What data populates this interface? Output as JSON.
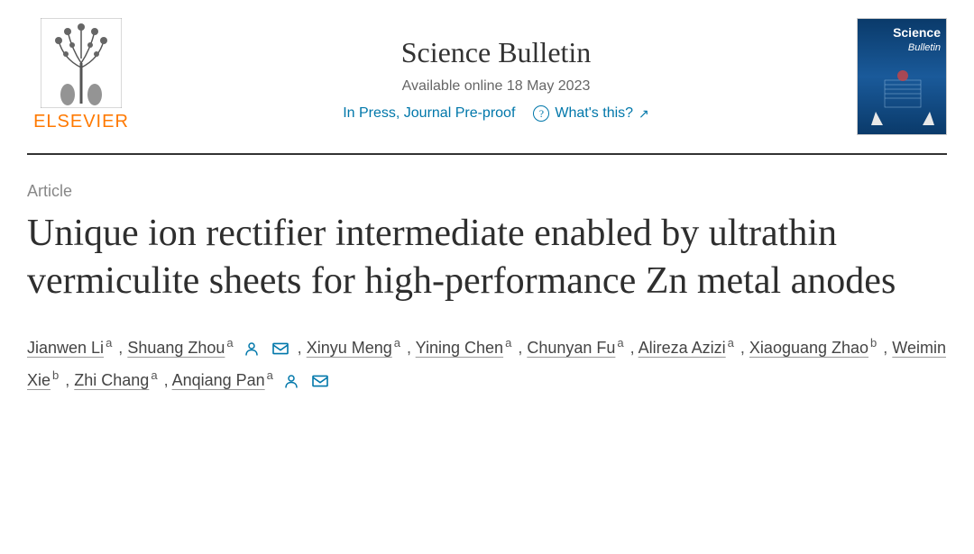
{
  "publisher": {
    "name": "ELSEVIER",
    "color": "#ff7900"
  },
  "journal": {
    "name": "Science Bulletin",
    "online_date": "Available online 18 May 2023",
    "status": "In Press, Journal Pre-proof",
    "whats_this": "What's this?",
    "cover_title_line1": "Science",
    "cover_title_line2": "Bulletin",
    "cover_colors": {
      "background_top": "#0a3a6a",
      "background_mid": "#1a5a9a"
    }
  },
  "article": {
    "type": "Article",
    "title": "Unique ion rectifier intermediate enabled by ultrathin vermiculite sheets for high-performance Zn metal anodes"
  },
  "authors": [
    {
      "name": "Jianwen Li",
      "affil": "a",
      "corresponding": false,
      "email": false
    },
    {
      "name": "Shuang Zhou",
      "affil": "a",
      "corresponding": true,
      "email": true
    },
    {
      "name": "Xinyu Meng",
      "affil": "a",
      "corresponding": false,
      "email": false
    },
    {
      "name": "Yining Chen",
      "affil": "a",
      "corresponding": false,
      "email": false
    },
    {
      "name": "Chunyan Fu",
      "affil": "a",
      "corresponding": false,
      "email": false
    },
    {
      "name": "Alireza Azizi",
      "affil": "a",
      "corresponding": false,
      "email": false
    },
    {
      "name": "Xiaoguang Zhao",
      "affil": "b",
      "corresponding": false,
      "email": false
    },
    {
      "name": "Weimin Xie",
      "affil": "b",
      "corresponding": false,
      "email": false
    },
    {
      "name": "Zhi Chang",
      "affil": "a",
      "corresponding": false,
      "email": false
    },
    {
      "name": "Anqiang Pan",
      "affil": "a",
      "corresponding": true,
      "email": true
    }
  ],
  "colors": {
    "link": "#0077aa",
    "text": "#2e2e2e",
    "muted": "#888",
    "border": "#333"
  }
}
